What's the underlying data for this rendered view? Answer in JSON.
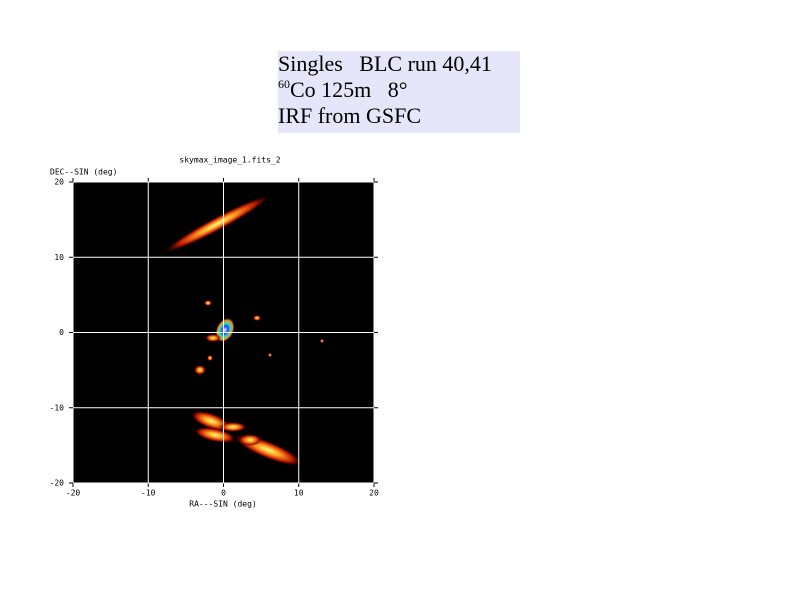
{
  "header": {
    "line1": "Singles   BLC run 40,41",
    "line2_sup": "60",
    "line2": "Co 125m   8°",
    "line3": "IRF from GSFC"
  },
  "chart_data": {
    "type": "image",
    "title": "skymax_image_1.fits_2",
    "x_label": "RA---SIN (deg)",
    "y_label": "DEC--SIN (deg)",
    "xlim": [
      -20,
      20
    ],
    "ylim": [
      -20,
      20
    ],
    "xticks": [
      -20,
      -10,
      0,
      10,
      20
    ],
    "yticks": [
      -20,
      -10,
      0,
      10,
      20
    ],
    "grid": true
  }
}
